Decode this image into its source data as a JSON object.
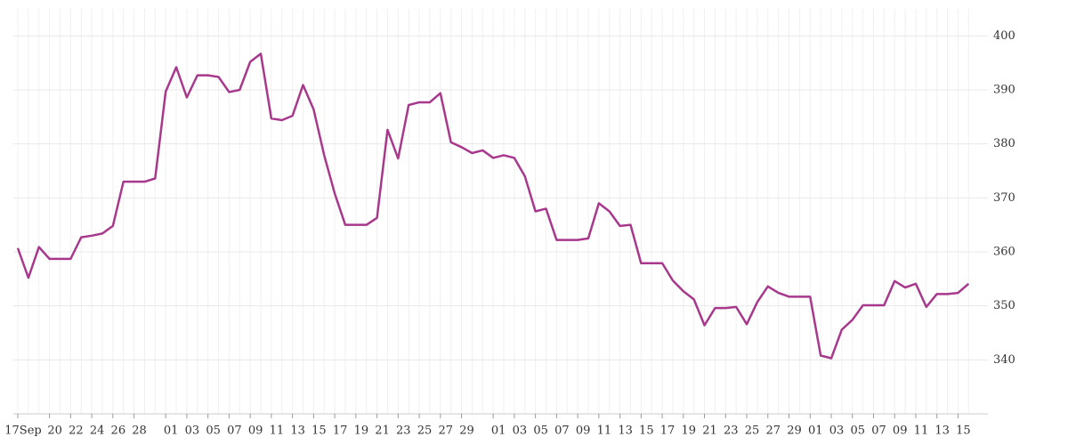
{
  "chart_data": {
    "type": "line",
    "categories": [
      "17Sep",
      null,
      null,
      "20",
      null,
      "22",
      null,
      "24",
      null,
      "26",
      null,
      "28",
      null,
      null,
      "01",
      null,
      "03",
      null,
      "05",
      null,
      "07",
      null,
      "09",
      null,
      "11",
      null,
      "13",
      null,
      "15",
      null,
      "17",
      null,
      "19",
      null,
      "21",
      null,
      "23",
      null,
      "25",
      null,
      "27",
      null,
      "29",
      null,
      null,
      "01",
      null,
      "03",
      null,
      "05",
      null,
      "07",
      null,
      "09",
      null,
      "11",
      null,
      "13",
      null,
      "15",
      null,
      "17",
      null,
      "19",
      null,
      "21",
      null,
      "23",
      null,
      "25",
      null,
      "27",
      null,
      "29",
      null,
      "01",
      null,
      "03",
      null,
      "05",
      null,
      "07",
      null,
      "09",
      null,
      "11",
      null,
      "13",
      null,
      "15",
      null
    ],
    "series": [
      {
        "color": "#a8388c",
        "values": [
          360.7,
          355.2,
          360.9,
          358.7,
          358.7,
          358.7,
          362.7,
          363.0,
          363.4,
          364.8,
          373.0,
          373.0,
          373.0,
          373.6,
          389.7,
          394.2,
          388.6,
          392.7,
          392.7,
          392.4,
          389.6,
          390.0,
          395.2,
          396.7,
          384.7,
          384.4,
          385.2,
          390.9,
          386.4,
          377.9,
          370.8,
          365.0,
          365.0,
          365.0,
          366.3,
          382.6,
          377.3,
          387.2,
          387.7,
          387.7,
          389.4,
          380.3,
          379.4,
          378.3,
          378.8,
          377.4,
          377.9,
          377.4,
          374.0,
          367.5,
          368.0,
          362.2,
          362.2,
          362.2,
          362.5,
          369.0,
          367.5,
          364.8,
          365.0,
          357.9,
          357.9,
          357.9,
          354.7,
          352.7,
          351.2,
          346.4,
          349.6,
          349.6,
          349.8,
          346.6,
          350.7,
          353.6,
          352.4,
          351.7,
          351.7,
          351.7,
          340.8,
          340.3,
          345.6,
          347.4,
          350.1,
          350.1,
          350.1,
          354.6,
          353.4,
          354.1,
          349.8,
          352.2,
          352.2,
          352.4,
          354.1
        ]
      }
    ],
    "ylim": [
      330,
      405
    ],
    "yticks": [
      340,
      350,
      360,
      370,
      380,
      390,
      400
    ],
    "grid": true
  }
}
